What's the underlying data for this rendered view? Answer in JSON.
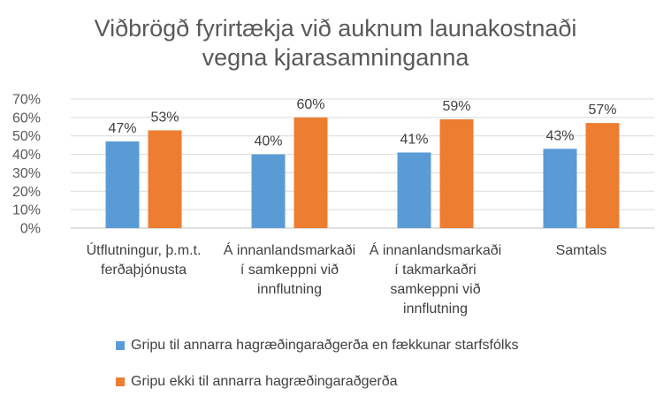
{
  "chart_data": {
    "type": "bar",
    "title_line1": "Viðbrögð fyrirtækja við auknum launakostnaði",
    "title_line2": "vegna kjarasamninganna",
    "categories": [
      [
        "Útflutningur, þ.m.t.",
        "ferðaþjónusta"
      ],
      [
        "Á innanlandsmarkaði",
        "í samkeppni við",
        "innflutning"
      ],
      [
        "Á innanlandsmarkaði",
        "í takmarkaðri",
        "samkeppni við",
        "innflutning"
      ],
      [
        "Samtals"
      ]
    ],
    "series": [
      {
        "name": "Gripu til annarra hagræðingaraðgerða en fækkunar starfsfólks",
        "color": "#5B9BD5",
        "values": [
          47,
          40,
          41,
          43
        ],
        "labels": [
          "47%",
          "40%",
          "41%",
          "43%"
        ]
      },
      {
        "name": "Gripu ekki til annarra hagræðingaraðgerða",
        "color": "#ED7D31",
        "values": [
          53,
          60,
          59,
          57
        ],
        "labels": [
          "53%",
          "60%",
          "59%",
          "57%"
        ]
      }
    ],
    "ylim": [
      0,
      70
    ],
    "yticks": [
      "0%",
      "10%",
      "20%",
      "30%",
      "40%",
      "50%",
      "60%",
      "70%"
    ],
    "grid": true,
    "legend_position": "bottom"
  }
}
